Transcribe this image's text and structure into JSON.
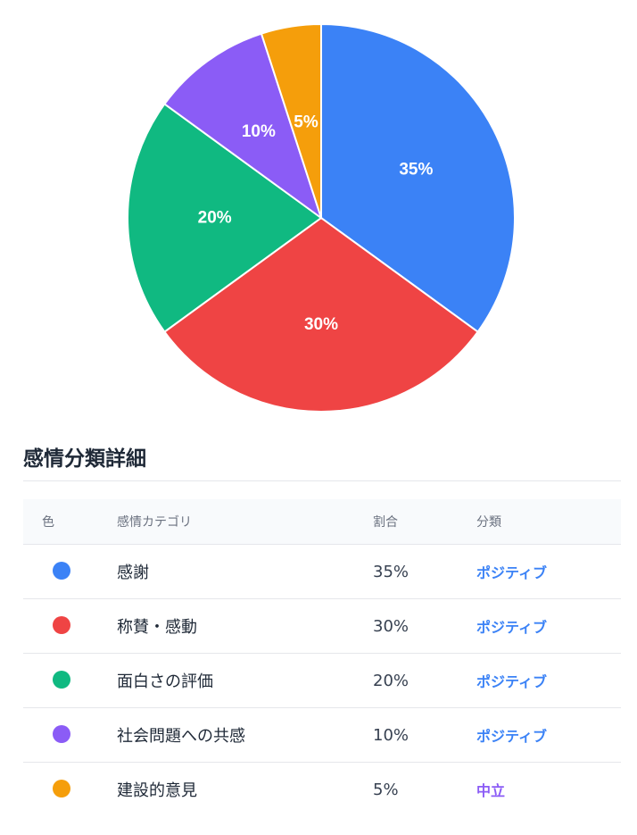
{
  "chart_data": {
    "type": "pie",
    "slices": [
      {
        "label": "35%",
        "value": 35,
        "color": "#3b82f6"
      },
      {
        "label": "30%",
        "value": 30,
        "color": "#ef4444"
      },
      {
        "label": "20%",
        "value": 20,
        "color": "#10b981"
      },
      {
        "label": "10%",
        "value": 10,
        "color": "#8b5cf6"
      },
      {
        "label": "5%",
        "value": 5,
        "color": "#f59e0b"
      }
    ]
  },
  "section": {
    "title": "感情分類詳細"
  },
  "table": {
    "headers": {
      "color": "色",
      "category": "感情カテゴリ",
      "ratio": "割合",
      "classification": "分類"
    },
    "rows": [
      {
        "color": "#3b82f6",
        "category": "感謝",
        "ratio": "35%",
        "classification": "ポジティブ",
        "class_color": "#3b82f6"
      },
      {
        "color": "#ef4444",
        "category": "称賛・感動",
        "ratio": "30%",
        "classification": "ポジティブ",
        "class_color": "#3b82f6"
      },
      {
        "color": "#10b981",
        "category": "面白さの評価",
        "ratio": "20%",
        "classification": "ポジティブ",
        "class_color": "#3b82f6"
      },
      {
        "color": "#8b5cf6",
        "category": "社会問題への共感",
        "ratio": "10%",
        "classification": "ポジティブ",
        "class_color": "#3b82f6"
      },
      {
        "color": "#f59e0b",
        "category": "建設的意見",
        "ratio": "5%",
        "classification": "中立",
        "class_color": "#8b5cf6"
      }
    ]
  }
}
